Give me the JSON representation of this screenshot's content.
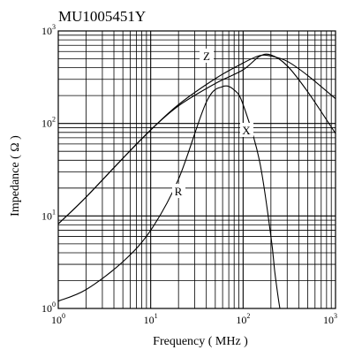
{
  "chart_data": {
    "type": "line",
    "title": "MU1005451Y",
    "xlabel": "Frequency ( MHz )",
    "ylabel": "Impedance ( Ω )",
    "x_scale": "log",
    "y_scale": "log",
    "xlim": [
      1,
      1000
    ],
    "ylim": [
      1,
      1000
    ],
    "grid": true,
    "x_ticks": [
      {
        "base": "10",
        "exp": "0"
      },
      {
        "base": "10",
        "exp": "1"
      },
      {
        "base": "10",
        "exp": "2"
      },
      {
        "base": "10",
        "exp": "3"
      }
    ],
    "y_ticks": [
      {
        "base": "10",
        "exp": "0"
      },
      {
        "base": "10",
        "exp": "1"
      },
      {
        "base": "10",
        "exp": "2"
      },
      {
        "base": "10",
        "exp": "3"
      }
    ],
    "series": [
      {
        "name": "Z",
        "x": [
          1,
          2,
          5,
          10,
          20,
          50,
          100,
          150,
          200,
          300,
          500,
          1000
        ],
        "y": [
          8.2,
          16,
          42,
          85,
          160,
          305,
          450,
          540,
          535,
          470,
          330,
          185
        ]
      },
      {
        "name": "X",
        "x": [
          1,
          2,
          5,
          10,
          20,
          50,
          100,
          150,
          200,
          300,
          500,
          1000
        ],
        "y": [
          8.2,
          16,
          42,
          85,
          155,
          270,
          380,
          530,
          550,
          420,
          220,
          78
        ]
      },
      {
        "name": "R",
        "x": [
          1,
          2,
          5,
          10,
          20,
          40,
          60,
          80,
          100,
          150,
          200,
          220,
          240,
          250
        ],
        "y": [
          1.2,
          1.6,
          3.2,
          7,
          25,
          170,
          250,
          230,
          160,
          40,
          6,
          2.5,
          1.3,
          1
        ]
      }
    ]
  }
}
